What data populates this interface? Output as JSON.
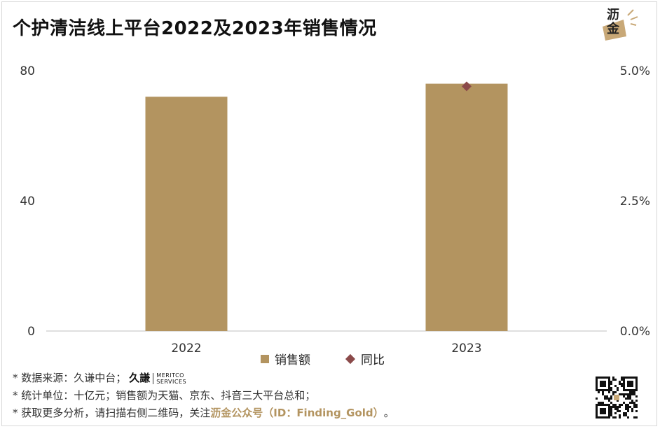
{
  "title": "个护清洁线上平台2022及2023年销售情况",
  "logo": {
    "text": "沥金",
    "icon": "brand-logo-icon"
  },
  "chart_data": {
    "type": "bar",
    "categories": [
      "2022",
      "2023"
    ],
    "series": [
      {
        "name": "销售额",
        "type": "bar",
        "axis": "left",
        "values": [
          72,
          76
        ],
        "color": "#B39460"
      },
      {
        "name": "同比",
        "type": "scatter",
        "axis": "right",
        "values": [
          null,
          0.047
        ],
        "color": "#8B4A4A",
        "marker": "diamond"
      }
    ],
    "y_left": {
      "ylim": [
        0,
        80
      ],
      "ticks": [
        "0",
        "40",
        "80"
      ],
      "tick_values": [
        0,
        40,
        80
      ]
    },
    "y_right": {
      "ylim": [
        0,
        0.05
      ],
      "ticks": [
        "0.0%",
        "2.5%",
        "5.0%"
      ],
      "tick_values": [
        0,
        0.025,
        0.05
      ]
    },
    "grid": false,
    "legend_placement": "bottom-center"
  },
  "notes": {
    "line1": "* 数据来源：久谦中台；",
    "meritco_mark": "久謙",
    "meritco_name1": "MERITCO",
    "meritco_name2": "SERVICES",
    "line2": "* 统计单位：十亿元；销售额为天猫、京东、抖音三大平台总和；",
    "line3_prefix": "* 获取更多分析，请扫描右侧二维码，关注",
    "line3_accent": "沥金公众号（ID：Finding_Gold）",
    "line3_suffix": "。"
  },
  "qr": {
    "icon": "qr-code-icon"
  }
}
